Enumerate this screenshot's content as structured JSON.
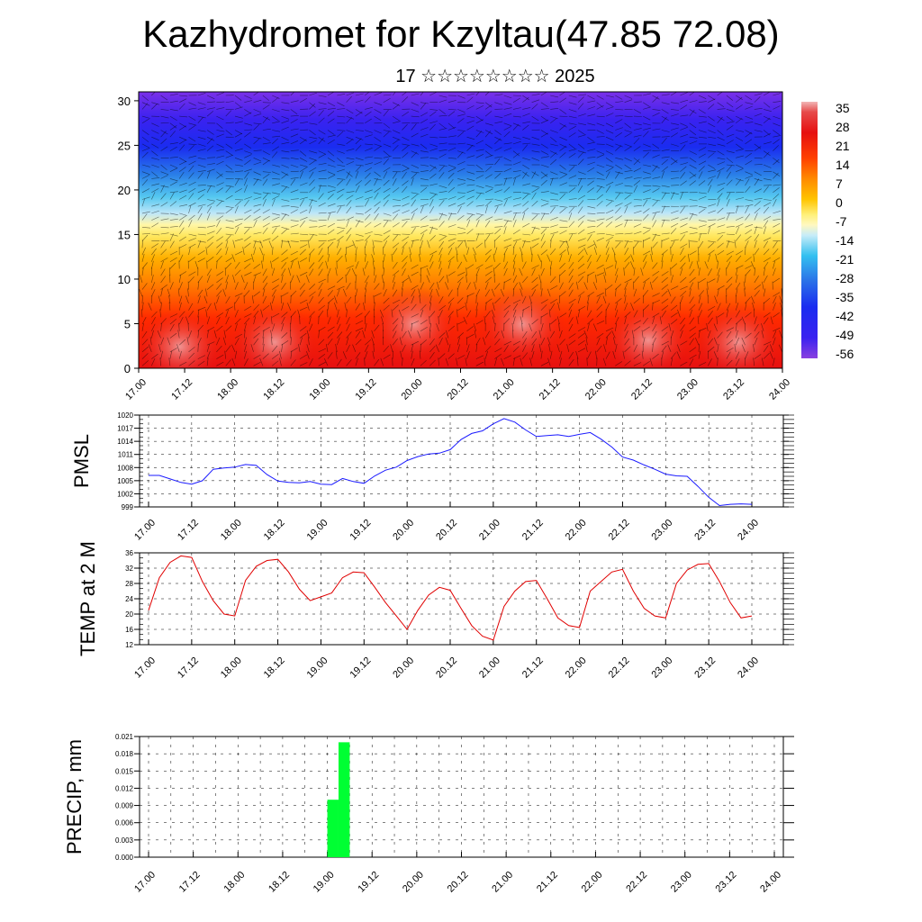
{
  "title": "Kazhydromet for Kzyltau(47.85 72.08)",
  "subtitle": "17 ☆☆☆☆☆☆☆☆ 2025",
  "colors": {
    "pmsl_line": "#1a1aff",
    "temp_line": "#e00000",
    "precip_bar": "#00ff33"
  },
  "chart_data": [
    {
      "type": "heatmap",
      "title": "",
      "x_tick_labels": [
        "17.00",
        "17.12",
        "18.00",
        "18.12",
        "19.00",
        "19.12",
        "20.00",
        "20.12",
        "21.00",
        "21.12",
        "22.00",
        "22.12",
        "23.00",
        "23.12",
        "24.00"
      ],
      "y_ticks": [
        0,
        5,
        10,
        15,
        20,
        25,
        30
      ],
      "ylim": [
        0,
        31
      ],
      "colorbar_labels": [
        "35",
        "28",
        "21",
        "14",
        "7",
        "0",
        "-7",
        "-14",
        "-21",
        "-28",
        "-35",
        "-42",
        "-49",
        "-56"
      ],
      "colorbar_range": [
        -63,
        42
      ],
      "wind_barbs": true
    },
    {
      "type": "line",
      "ylabel": "PMSL",
      "x_tick_labels": [
        "17.00",
        "17.12",
        "18.00",
        "18.12",
        "19.00",
        "19.12",
        "20.00",
        "20.12",
        "21.00",
        "21.12",
        "22.00",
        "22.12",
        "23.00",
        "23.12",
        "24.00"
      ],
      "y_ticks": [
        999,
        1002,
        1005,
        1008,
        1011,
        1014,
        1017,
        1020
      ],
      "ylim": [
        999,
        1020
      ],
      "x": [
        0,
        3,
        6,
        9,
        12,
        15,
        18,
        21,
        24,
        27,
        30,
        33,
        36,
        39,
        42,
        45,
        48,
        51,
        54,
        57,
        60,
        63,
        66,
        69,
        72,
        75,
        78,
        81,
        84,
        87,
        90,
        93,
        96,
        99,
        102,
        105,
        108,
        111,
        114,
        117,
        120,
        123,
        126,
        129,
        132,
        135,
        138,
        141,
        144,
        147,
        150,
        153,
        156,
        159,
        162,
        165,
        168
      ],
      "values": [
        1006.2,
        1006.2,
        1005.4,
        1004.6,
        1004.2,
        1005.0,
        1007.6,
        1007.9,
        1008.1,
        1008.7,
        1008.5,
        1006.4,
        1004.9,
        1004.6,
        1004.5,
        1004.8,
        1004.2,
        1004.1,
        1005.5,
        1004.8,
        1004.4,
        1006.1,
        1007.4,
        1008.1,
        1009.6,
        1010.5,
        1011.1,
        1011.3,
        1012.1,
        1014.4,
        1015.8,
        1016.4,
        1018.0,
        1019.2,
        1018.4,
        1016.6,
        1015.1,
        1015.3,
        1015.5,
        1015.1,
        1015.6,
        1016.0,
        1014.5,
        1012.7,
        1010.4,
        1009.7,
        1008.6,
        1007.6,
        1006.5,
        1006.1,
        1006.0,
        1003.7,
        1001.2,
        999.3,
        999.6,
        999.7,
        999.6
      ]
    },
    {
      "type": "line",
      "ylabel": "TEMP at 2 M",
      "x_tick_labels": [
        "17.00",
        "17.12",
        "18.00",
        "18.12",
        "19.00",
        "19.12",
        "20.00",
        "20.12",
        "21.00",
        "21.12",
        "22.00",
        "22.12",
        "23.00",
        "23.12",
        "24.00"
      ],
      "y_ticks": [
        12,
        16,
        20,
        24,
        28,
        32,
        36
      ],
      "ylim": [
        12,
        36
      ],
      "x": [
        0,
        3,
        6,
        9,
        12,
        15,
        18,
        21,
        24,
        27,
        30,
        33,
        36,
        39,
        42,
        45,
        48,
        51,
        54,
        57,
        60,
        63,
        66,
        69,
        72,
        75,
        78,
        81,
        84,
        87,
        90,
        93,
        96,
        99,
        102,
        105,
        108,
        111,
        114,
        117,
        120,
        123,
        126,
        129,
        132,
        135,
        138,
        141,
        144,
        147,
        150,
        153,
        156,
        159,
        162,
        165,
        168
      ],
      "values": [
        21,
        29.5,
        33.5,
        35.2,
        34.8,
        28.5,
        23.5,
        20,
        19.5,
        28.8,
        32.5,
        34,
        34.3,
        31,
        26.5,
        23.5,
        24.5,
        25.5,
        29.5,
        31,
        30.8,
        27,
        23,
        19.5,
        16,
        21,
        25,
        27,
        26.2,
        21.5,
        17,
        14.2,
        13.2,
        22,
        26,
        28.5,
        28.8,
        24,
        19,
        17,
        16.5,
        26,
        28.5,
        31,
        31.7,
        26,
        21.5,
        19.5,
        19,
        28,
        31.5,
        33,
        33.2,
        28.5,
        23,
        19,
        19.5
      ]
    },
    {
      "type": "bar",
      "ylabel": "PRECIP, mm",
      "x_tick_labels": [
        "17.00",
        "17.12",
        "18.00",
        "18.12",
        "19.00",
        "19.12",
        "20.00",
        "20.12",
        "21.00",
        "21.12",
        "22.00",
        "22.12",
        "23.00",
        "23.12",
        "24.00"
      ],
      "y_tick_labels": [
        "0.000",
        "0.003",
        "0.006",
        "0.009",
        "0.012",
        "0.015",
        "0.018",
        "0.021"
      ],
      "ylim": [
        0,
        0.021
      ],
      "bars": [
        {
          "x_start": 48,
          "x_end": 51,
          "value": 0.01
        },
        {
          "x_start": 51,
          "x_end": 54,
          "value": 0.02
        }
      ]
    }
  ]
}
